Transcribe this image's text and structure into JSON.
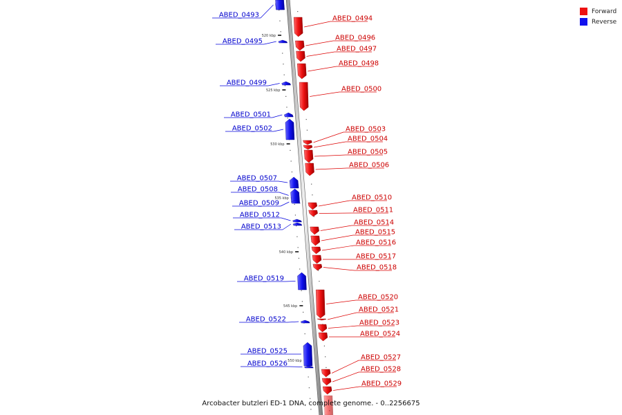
{
  "legend": {
    "forward_label": "Forward",
    "reverse_label": "Reverse",
    "forward_color": "#ee1111",
    "reverse_color": "#1111ee"
  },
  "caption": "Arcobacter butzleri ED-1 DNA, complete genome. - 0..2256675",
  "scale_ticks": [
    "520 kbp",
    "525 kbp",
    "530 kbp",
    "535 kbp",
    "540 kbp",
    "545 kbp",
    "550 kbp"
  ],
  "genes_forward": [
    "ABED_0494",
    "ABED_0496",
    "ABED_0497",
    "ABED_0498",
    "ABED_0500",
    "ABED_0503",
    "ABED_0504",
    "ABED_0505",
    "ABED_0506",
    "ABED_0510",
    "ABED_0511",
    "ABED_0514",
    "ABED_0515",
    "ABED_0516",
    "ABED_0517",
    "ABED_0518",
    "ABED_0520",
    "ABED_0521",
    "ABED_0523",
    "ABED_0524",
    "ABED_0527",
    "ABED_0528",
    "ABED_0529"
  ],
  "genes_reverse": [
    "ABED_0493",
    "ABED_0495",
    "ABED_0499",
    "ABED_0501",
    "ABED_0502",
    "ABED_0507",
    "ABED_0508",
    "ABED_0509",
    "ABED_0512",
    "ABED_0513",
    "ABED_0519",
    "ABED_0522",
    "ABED_0525",
    "ABED_0526"
  ]
}
